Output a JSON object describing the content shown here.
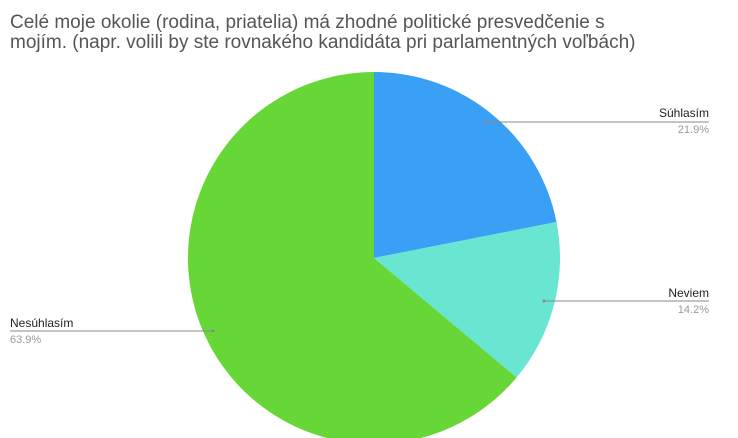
{
  "chart_data": {
    "type": "pie",
    "title_lines": [
      "Celé moje okolie (rodina, priatelia) má zhodné politické presvedčenie s",
      "mojím. (napr. volili by ste rovnakého kandidáta pri parlamentných voľbách)"
    ],
    "slices": [
      {
        "label": "Súhlasím",
        "value": 21.9,
        "value_label": "21.9%",
        "color": "#3aa0f6"
      },
      {
        "label": "Neviem",
        "value": 14.2,
        "value_label": "14.2%",
        "color": "#68e6d2"
      },
      {
        "label": "Nesúhlasím",
        "value": 63.9,
        "value_label": "63.9%",
        "color": "#67d637"
      }
    ]
  }
}
